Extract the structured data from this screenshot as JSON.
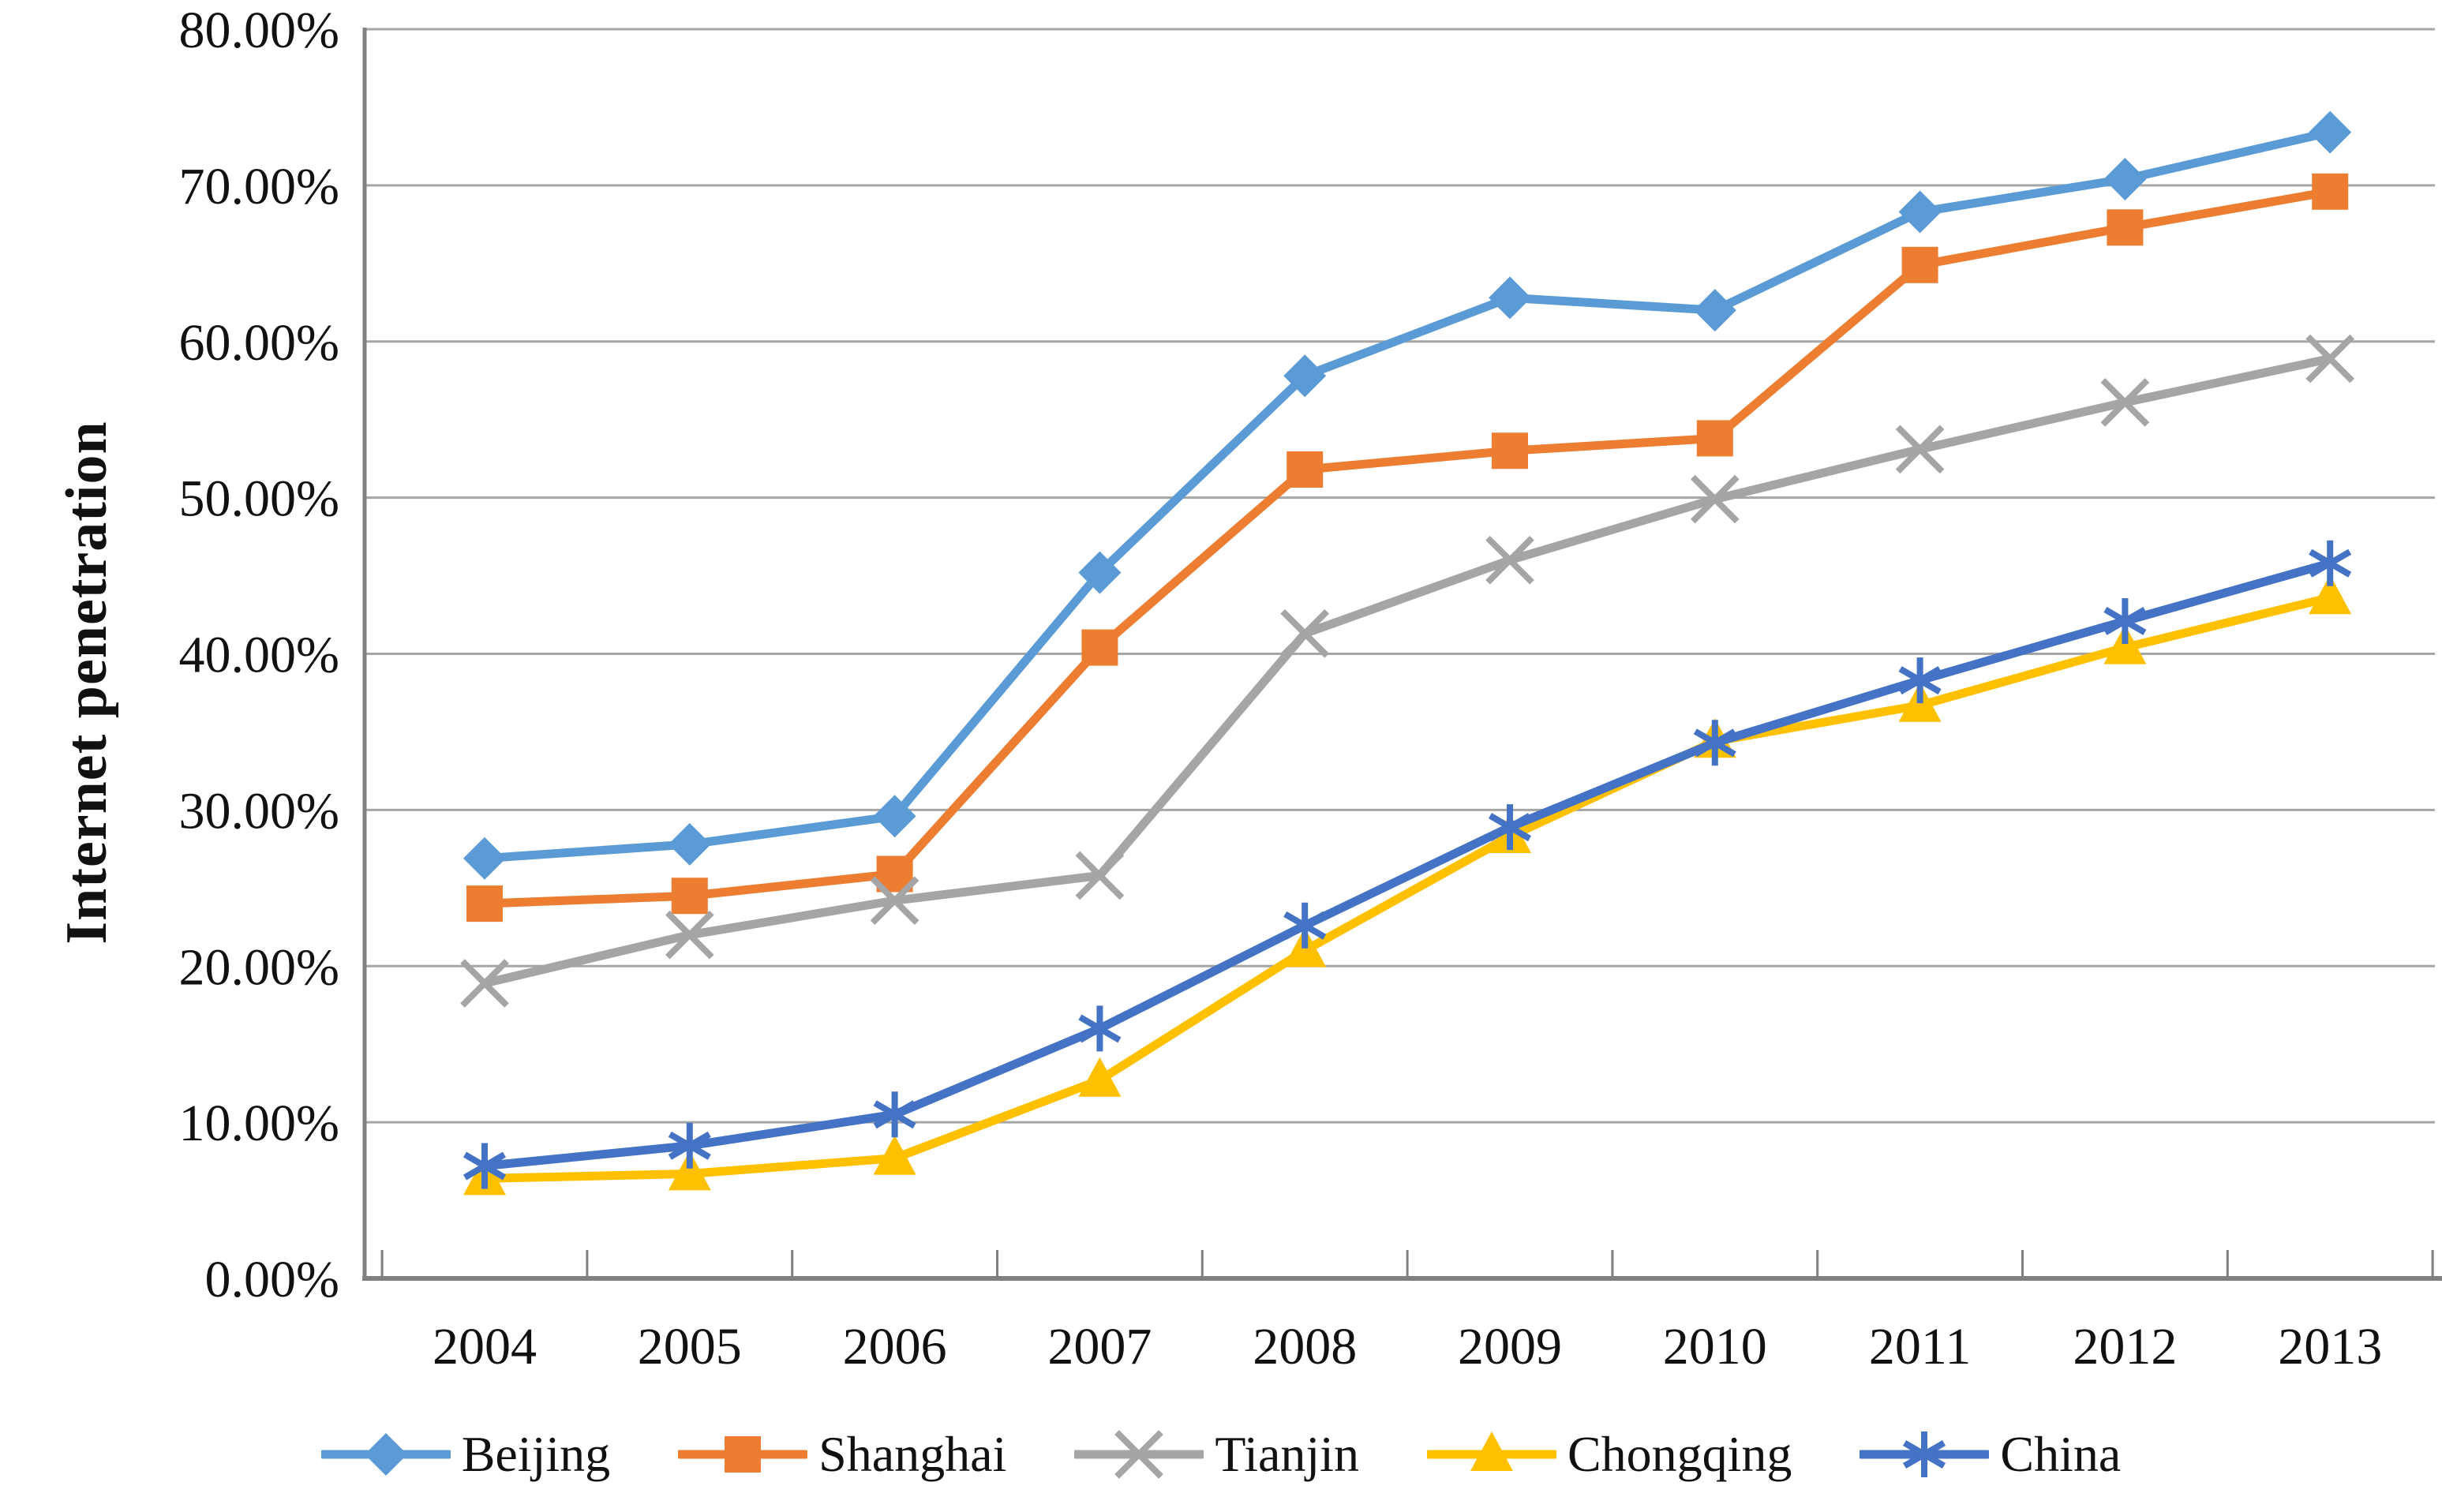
{
  "chart_data": {
    "type": "line",
    "title": "",
    "xlabel": "",
    "ylabel": "Internet penetration",
    "ylim": [
      0,
      80
    ],
    "grid": true,
    "legend_position": "bottom",
    "y_tick_labels": [
      "0.00%",
      "10.00%",
      "20.00%",
      "30.00%",
      "40.00%",
      "50.00%",
      "60.00%",
      "70.00%",
      "80.00%"
    ],
    "categories": [
      "2004",
      "2005",
      "2006",
      "2007",
      "2008",
      "2009",
      "2010",
      "2011",
      "2012",
      "2013"
    ],
    "series": [
      {
        "name": "Beijing",
        "color": "#5B9BD5",
        "marker": "diamond",
        "values": [
          26.9,
          27.8,
          29.6,
          45.2,
          57.8,
          62.8,
          62.0,
          68.3,
          70.4,
          73.4
        ]
      },
      {
        "name": "Shanghai",
        "color": "#ED7D31",
        "marker": "square",
        "values": [
          24.0,
          24.5,
          25.9,
          40.4,
          51.8,
          53.0,
          53.8,
          64.9,
          67.3,
          69.6
        ]
      },
      {
        "name": "Tianjin",
        "color": "#A5A5A5",
        "marker": "x",
        "values": [
          18.9,
          22.0,
          24.2,
          25.8,
          41.3,
          46.0,
          49.9,
          53.1,
          56.1,
          58.9
        ]
      },
      {
        "name": "Chongqing",
        "color": "#FFC000",
        "marker": "triangle",
        "values": [
          6.4,
          6.7,
          7.7,
          12.7,
          21.0,
          28.3,
          34.4,
          36.7,
          40.4,
          43.6
        ]
      },
      {
        "name": "China",
        "color": "#4472C4",
        "marker": "asterisk",
        "values": [
          7.2,
          8.5,
          10.5,
          16.0,
          22.6,
          28.9,
          34.3,
          38.3,
          42.1,
          45.8
        ]
      }
    ],
    "colors": {
      "gridline": "#A6A6A6",
      "axis": "#808080",
      "text": "#111111",
      "background": "#FFFFFF"
    }
  }
}
